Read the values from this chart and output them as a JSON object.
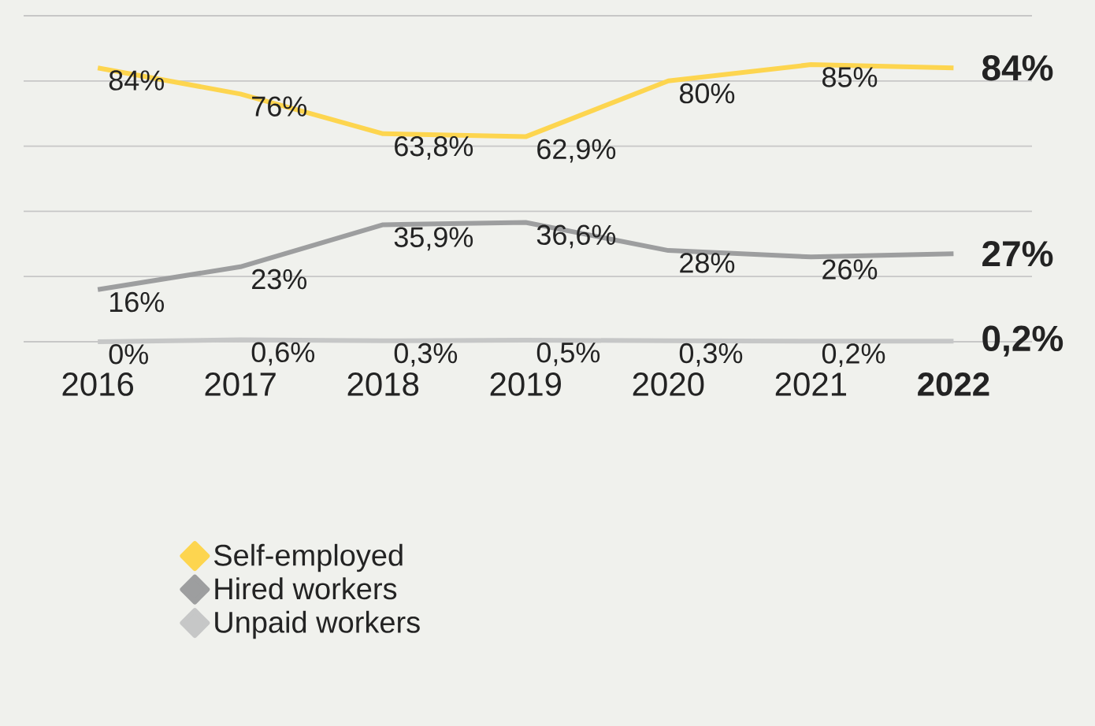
{
  "chart_data": {
    "type": "line",
    "categories": [
      "2016",
      "2017",
      "2018",
      "2019",
      "2020",
      "2021",
      "2022"
    ],
    "series": [
      {
        "name": "Self-employed",
        "color": "#fdd54f",
        "values": [
          84,
          76,
          63.8,
          62.9,
          80,
          85,
          84
        ],
        "value_labels": [
          "84%",
          "76%",
          "63,8%",
          "62,9%",
          "80%",
          "85%",
          "84%"
        ]
      },
      {
        "name": "Hired workers",
        "color": "#9d9e9f",
        "values": [
          16,
          23,
          35.9,
          36.6,
          28,
          26,
          27
        ],
        "value_labels": [
          "16%",
          "23%",
          "35,9%",
          "36,6%",
          "28%",
          "26%",
          "27%"
        ]
      },
      {
        "name": "Unpaid workers",
        "color": "#c6c7c7",
        "values": [
          0,
          0.6,
          0.3,
          0.5,
          0.3,
          0.2,
          0.2
        ],
        "value_labels": [
          "0%",
          "0,6%",
          "0,3%",
          "0,5%",
          "0,3%",
          "0,2%",
          "0,2%"
        ]
      }
    ],
    "ylim": [
      0,
      100
    ],
    "yticks": [
      {
        "value": 0,
        "label": null
      },
      {
        "value": 20,
        "label": null
      },
      {
        "value": 40,
        "label": null
      },
      {
        "value": 60,
        "label": null
      },
      {
        "value": 80,
        "label": null
      },
      {
        "value": 100,
        "label": null
      }
    ],
    "grid": "y",
    "tick_labels": "x",
    "legend": "bottom",
    "marker": "none",
    "line_style": "solid"
  }
}
